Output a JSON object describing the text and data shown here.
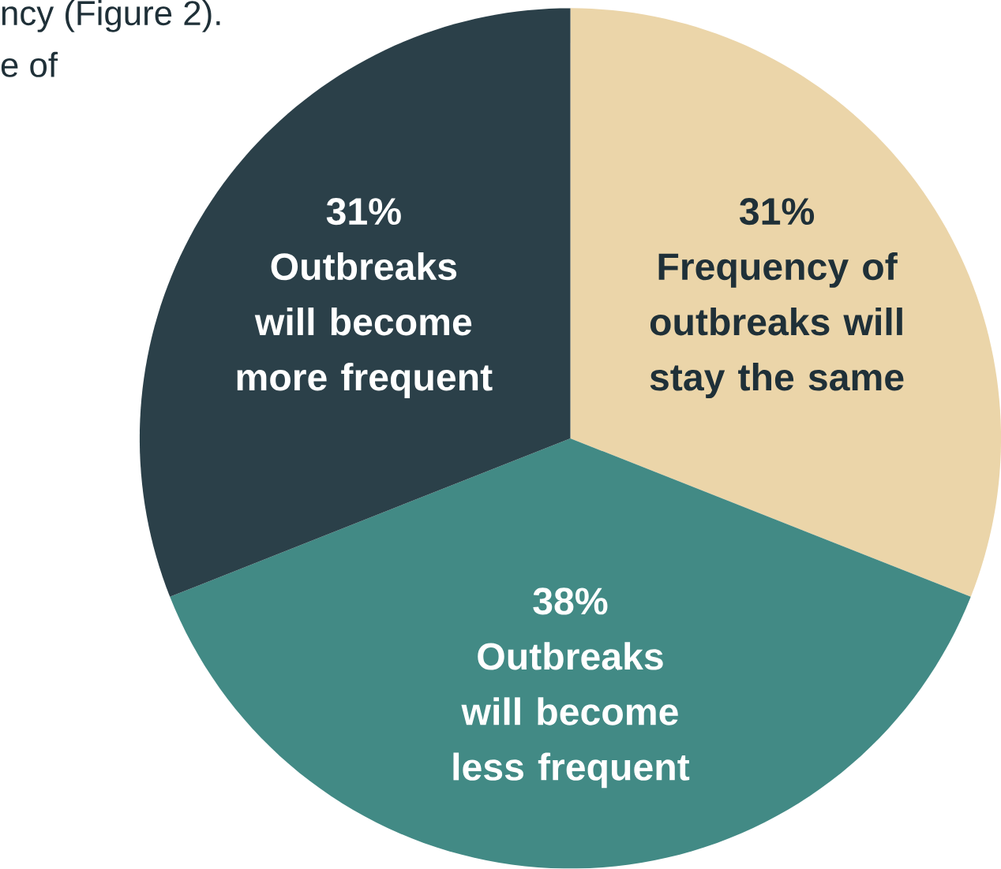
{
  "chart_data": {
    "type": "pie",
    "categories": [
      "Frequency of outbreaks will stay the same",
      "Outbreaks will become less frequent",
      "Outbreaks will become more frequent"
    ],
    "values": [
      31,
      38,
      31
    ],
    "value_labels": [
      "31%",
      "38%",
      "31%"
    ],
    "colors": [
      "#ebd5a9",
      "#428a85",
      "#2b4049"
    ],
    "annotations": [
      "ncy (Figure 2).",
      "e of"
    ]
  }
}
